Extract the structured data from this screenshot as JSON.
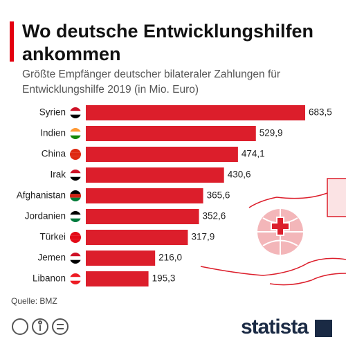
{
  "chart_data": {
    "type": "bar",
    "title": "Wo deutsche Entwicklungshilfen ankommen",
    "subtitle": "Größte Empfänger deutscher bilateraler Zahlungen für Entwicklungshilfe 2019 (in Mio. Euro)",
    "categories": [
      "Syrien",
      "Indien",
      "China",
      "Irak",
      "Afghanistan",
      "Jordanien",
      "Türkei",
      "Jemen",
      "Libanon"
    ],
    "values": [
      683.5,
      529.9,
      474.1,
      430.6,
      365.6,
      352.6,
      317.9,
      216.0,
      195.3
    ],
    "value_labels": [
      "683,5",
      "529,9",
      "474,1",
      "430,6",
      "365,6",
      "352,6",
      "317,9",
      "216,0",
      "195,3"
    ],
    "color": "#dc1e2b"
  },
  "source": "Quelle: BMZ",
  "logo": "statista"
}
